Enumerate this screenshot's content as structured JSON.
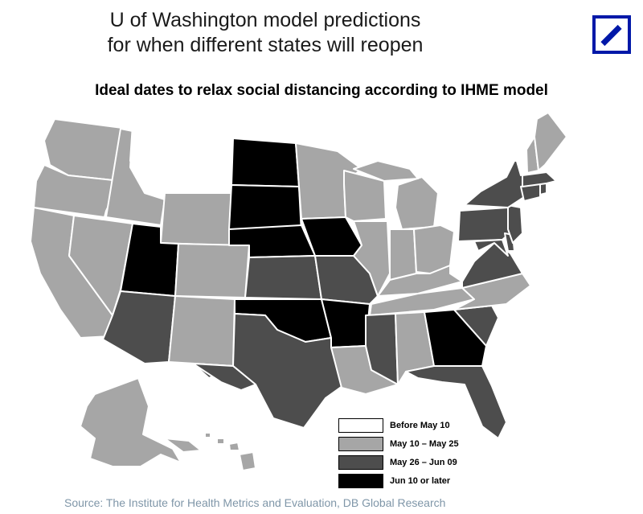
{
  "header": {
    "title_line1": "U of Washington model predictions",
    "title_line2": "for when different states will reopen",
    "logo_icon": "deutsche-bank-slash-logo"
  },
  "subtitle": "Ideal dates to relax social distancing according to IHME model",
  "colors": {
    "before_may10": "#ffffff",
    "may10_may25": "#a6a6a6",
    "may26_jun09": "#4d4d4d",
    "jun10_later": "#000000",
    "border": "#ffffff",
    "source_text": "#7f96a8",
    "logo": "#0018a8"
  },
  "legend": [
    {
      "label": "Before May 10",
      "color": "#ffffff"
    },
    {
      "label": "May 10 – May 25",
      "color": "#a6a6a6"
    },
    {
      "label": "May 26 – Jun 09",
      "color": "#4d4d4d"
    },
    {
      "label": "Jun 10 or later",
      "color": "#000000"
    }
  ],
  "states": {
    "before_may10": [
      "MT",
      "WV",
      "VT"
    ],
    "may10_may25": [
      "WA",
      "OR",
      "CA",
      "ID",
      "NV",
      "WY",
      "CO",
      "NM",
      "MN",
      "WI",
      "MI",
      "IL",
      "IN",
      "OH",
      "TN",
      "AL",
      "LA",
      "NC",
      "KY",
      "ME",
      "NH",
      "AK",
      "HI"
    ],
    "may26_jun09": [
      "AZ",
      "TX",
      "KS",
      "MO",
      "MS",
      "FL",
      "SC",
      "VA",
      "PA",
      "NY",
      "NJ",
      "MD",
      "DE",
      "MA",
      "CT",
      "RI"
    ],
    "jun10_later": [
      "UT",
      "ND",
      "SD",
      "NE",
      "IA",
      "OK",
      "AR",
      "GA"
    ]
  },
  "source": "Source: The Institute for Health Metrics and Evaluation, DB Global Research"
}
